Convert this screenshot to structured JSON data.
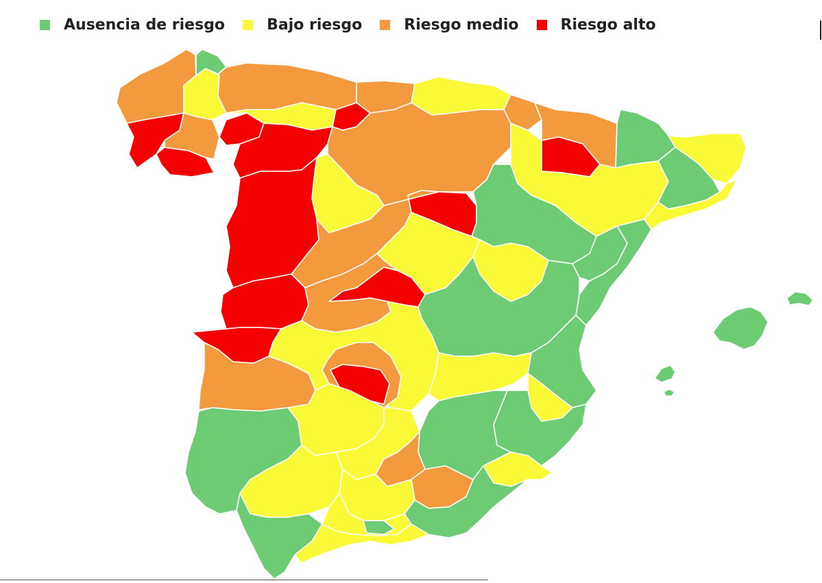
{
  "legend": [
    {
      "key": "none",
      "label": "Ausencia de riesgo",
      "color": "#6ccb73"
    },
    {
      "key": "low",
      "label": "Bajo riesgo",
      "color": "#f9f938"
    },
    {
      "key": "medium",
      "label": "Riesgo medio",
      "color": "#f39a3f"
    },
    {
      "key": "high",
      "label": "Riesgo alto",
      "color": "#f50000"
    }
  ],
  "map": {
    "regions": [
      {
        "id": "galicia-north",
        "level": "medium"
      },
      {
        "id": "galicia-west",
        "level": "high"
      },
      {
        "id": "galicia-south",
        "level": "high"
      },
      {
        "id": "galicia-east",
        "level": "low"
      },
      {
        "id": "galicia-ourense",
        "level": "medium"
      },
      {
        "id": "asturias-west",
        "level": "green"
      },
      {
        "id": "asturias",
        "level": "medium"
      },
      {
        "id": "cantabria",
        "level": "medium"
      },
      {
        "id": "basque",
        "level": "low"
      },
      {
        "id": "bierzo",
        "level": "high"
      },
      {
        "id": "leon-north",
        "level": "low"
      },
      {
        "id": "burgos-north",
        "level": "high"
      },
      {
        "id": "zamora-north",
        "level": "high"
      },
      {
        "id": "castilla-center",
        "level": "medium"
      },
      {
        "id": "valladolid",
        "level": "low"
      },
      {
        "id": "rioja",
        "level": "medium"
      },
      {
        "id": "navarra",
        "level": "medium"
      },
      {
        "id": "navarra-east",
        "level": "medium"
      },
      {
        "id": "huesca-north",
        "level": "high"
      },
      {
        "id": "aragon-west",
        "level": "low"
      },
      {
        "id": "catalonia-west",
        "level": "green"
      },
      {
        "id": "catalonia-east",
        "level": "low"
      },
      {
        "id": "barcelona",
        "level": "green"
      },
      {
        "id": "lleida",
        "level": "low"
      },
      {
        "id": "soria-red",
        "level": "high"
      },
      {
        "id": "zaragoza",
        "level": "green"
      },
      {
        "id": "teruel-north",
        "level": "green"
      },
      {
        "id": "castellon",
        "level": "green"
      },
      {
        "id": "salamanca",
        "level": "high"
      },
      {
        "id": "avila-segovia",
        "level": "medium"
      },
      {
        "id": "madrid-north",
        "level": "low"
      },
      {
        "id": "guadalajara",
        "level": "low"
      },
      {
        "id": "madrid-red",
        "level": "high"
      },
      {
        "id": "caceres",
        "level": "high"
      },
      {
        "id": "badajoz-north",
        "level": "high"
      },
      {
        "id": "toledo",
        "level": "medium"
      },
      {
        "id": "cuenca",
        "level": "green"
      },
      {
        "id": "valencia",
        "level": "green"
      },
      {
        "id": "extremadura-south",
        "level": "medium"
      },
      {
        "id": "ciudad-real-west",
        "level": "low"
      },
      {
        "id": "ciudad-real-red",
        "level": "high"
      },
      {
        "id": "ciudad-real-orange",
        "level": "medium"
      },
      {
        "id": "albacete",
        "level": "low"
      },
      {
        "id": "albacete-east",
        "level": "low"
      },
      {
        "id": "alicante",
        "level": "green"
      },
      {
        "id": "murcia",
        "level": "green"
      },
      {
        "id": "jaen-orange",
        "level": "medium"
      },
      {
        "id": "huelva",
        "level": "green"
      },
      {
        "id": "sevilla-north",
        "level": "low"
      },
      {
        "id": "sevilla",
        "level": "low"
      },
      {
        "id": "cordoba",
        "level": "low"
      },
      {
        "id": "jaen",
        "level": "low"
      },
      {
        "id": "granada-orange",
        "level": "medium"
      },
      {
        "id": "granada",
        "level": "low"
      },
      {
        "id": "almeria",
        "level": "green"
      },
      {
        "id": "murcia-south",
        "level": "low"
      },
      {
        "id": "cadiz",
        "level": "green"
      },
      {
        "id": "malaga",
        "level": "low"
      },
      {
        "id": "malaga-green",
        "level": "green"
      },
      {
        "id": "mallorca",
        "level": "green"
      },
      {
        "id": "menorca",
        "level": "green"
      },
      {
        "id": "ibiza",
        "level": "green"
      },
      {
        "id": "formentera",
        "level": "green"
      }
    ]
  }
}
